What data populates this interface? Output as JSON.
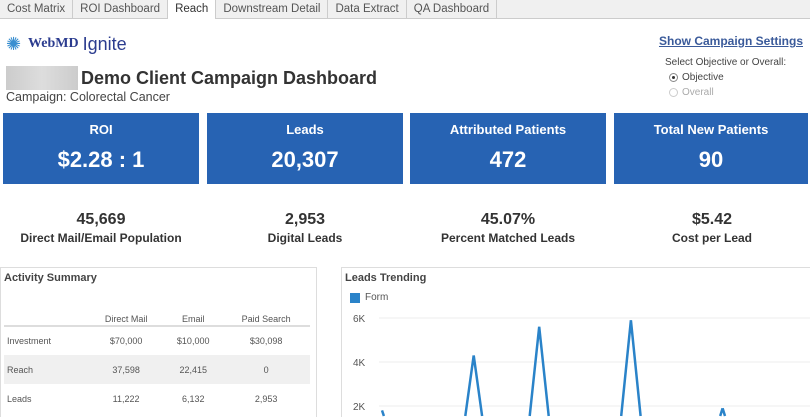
{
  "tabs": [
    {
      "label": "Cost Matrix"
    },
    {
      "label": "ROI Dashboard"
    },
    {
      "label": "Reach",
      "active": true
    },
    {
      "label": "Downstream Detail"
    },
    {
      "label": "Data Extract"
    },
    {
      "label": "QA Dashboard"
    }
  ],
  "logo": {
    "text": "WebMD Ignite"
  },
  "header": {
    "title": "Demo Client Campaign Dashboard",
    "subtitle": "Campaign: Colorectal Cancer",
    "settings_link": "Show Campaign Settings"
  },
  "selector": {
    "label": "Select Objective or Overall:",
    "options": [
      {
        "label": "Objective",
        "selected": true
      },
      {
        "label": "Overall",
        "selected": false
      }
    ]
  },
  "kpis": [
    {
      "label": "ROI",
      "value": "$2.28 : 1"
    },
    {
      "label": "Leads",
      "value": "20,307"
    },
    {
      "label": "Attributed Patients",
      "value": "472"
    },
    {
      "label": "Total New Patients",
      "value": "90"
    }
  ],
  "stats": [
    {
      "value": "45,669",
      "label": "Direct Mail/Email Population"
    },
    {
      "value": "2,953",
      "label": "Digital Leads"
    },
    {
      "value": "45.07%",
      "label": "Percent Matched Leads"
    },
    {
      "value": "$5.42",
      "label": "Cost per Lead"
    }
  ],
  "activity": {
    "title": "Activity Summary",
    "columns": [
      "",
      "Direct Mail",
      "Email",
      "Paid Search"
    ],
    "rows": [
      [
        "Investment",
        "$70,000",
        "$10,000",
        "$30,098"
      ],
      [
        "Reach",
        "37,598",
        "22,415",
        "0"
      ],
      [
        "Leads",
        "11,222",
        "6,132",
        "2,953"
      ]
    ]
  },
  "chart_data": {
    "type": "line",
    "title": "Leads Trending",
    "series": [
      {
        "name": "Form",
        "color": "#2a83c9",
        "values": [
          1800,
          0,
          0,
          0,
          0,
          0,
          0,
          4300,
          0,
          0,
          0,
          0,
          5600,
          0,
          0,
          0,
          0,
          0,
          0,
          5900,
          0,
          0,
          0,
          0,
          0,
          0,
          1900,
          0,
          0,
          0
        ]
      }
    ],
    "yticks": [
      "6K",
      "4K",
      "2K"
    ],
    "ytick_values": [
      6000,
      4000,
      2000
    ],
    "ylim": [
      0,
      6000
    ],
    "grid": true
  }
}
